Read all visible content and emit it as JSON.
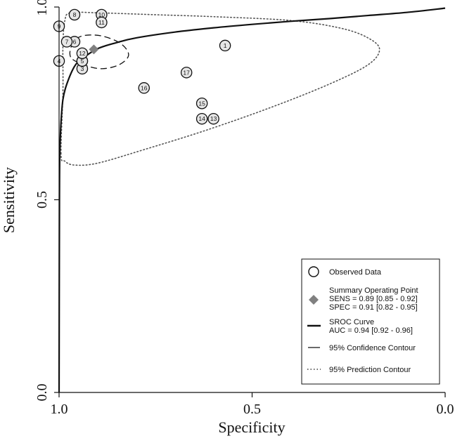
{
  "chart_data": {
    "type": "scatter",
    "title": "",
    "xlabel": "Specificity",
    "ylabel": "Sensitivity",
    "x_reversed": true,
    "xlim": [
      1.0,
      0.0
    ],
    "ylim": [
      0.0,
      1.0
    ],
    "x_ticks": [
      "1.0",
      "0.5",
      "0.0"
    ],
    "y_ticks": [
      "0.0",
      "0.5",
      "1.0"
    ],
    "grid": false,
    "legend_position": "bottom-right",
    "observed_points": [
      {
        "label": "1",
        "specificity": 0.57,
        "sensitivity": 0.9
      },
      {
        "label": "2",
        "specificity": 0.94,
        "sensitivity": 0.86
      },
      {
        "label": "3",
        "specificity": 0.94,
        "sensitivity": 0.84
      },
      {
        "label": "4",
        "specificity": 1.0,
        "sensitivity": 0.86
      },
      {
        "label": "5",
        "specificity": 0.94,
        "sensitivity": 0.86
      },
      {
        "label": "6",
        "specificity": 0.96,
        "sensitivity": 0.91
      },
      {
        "label": "7",
        "specificity": 0.98,
        "sensitivity": 0.91
      },
      {
        "label": "8",
        "specificity": 0.96,
        "sensitivity": 0.98
      },
      {
        "label": "9",
        "specificity": 1.0,
        "sensitivity": 0.95
      },
      {
        "label": "10",
        "specificity": 0.89,
        "sensitivity": 0.98
      },
      {
        "label": "11",
        "specificity": 0.89,
        "sensitivity": 0.96
      },
      {
        "label": "12",
        "specificity": 0.94,
        "sensitivity": 0.88
      },
      {
        "label": "13",
        "specificity": 0.6,
        "sensitivity": 0.71
      },
      {
        "label": "14",
        "specificity": 0.63,
        "sensitivity": 0.71
      },
      {
        "label": "15",
        "specificity": 0.63,
        "sensitivity": 0.75
      },
      {
        "label": "16",
        "specificity": 0.78,
        "sensitivity": 0.79
      },
      {
        "label": "17",
        "specificity": 0.67,
        "sensitivity": 0.83
      }
    ],
    "summary_point": {
      "specificity": 0.91,
      "sensitivity": 0.89
    },
    "sroc_curve": [
      {
        "specificity": 1.0,
        "sensitivity": 0.0
      },
      {
        "specificity": 0.999,
        "sensitivity": 0.5
      },
      {
        "specificity": 0.998,
        "sensitivity": 0.62
      },
      {
        "specificity": 0.995,
        "sensitivity": 0.7
      },
      {
        "specificity": 0.99,
        "sensitivity": 0.76
      },
      {
        "specificity": 0.98,
        "sensitivity": 0.8
      },
      {
        "specificity": 0.96,
        "sensitivity": 0.846
      },
      {
        "specificity": 0.94,
        "sensitivity": 0.866
      },
      {
        "specificity": 0.9,
        "sensitivity": 0.892
      },
      {
        "specificity": 0.85,
        "sensitivity": 0.908
      },
      {
        "specificity": 0.8,
        "sensitivity": 0.92
      },
      {
        "specificity": 0.7,
        "sensitivity": 0.935
      },
      {
        "specificity": 0.6,
        "sensitivity": 0.946
      },
      {
        "specificity": 0.5,
        "sensitivity": 0.955
      },
      {
        "specificity": 0.4,
        "sensitivity": 0.963
      },
      {
        "specificity": 0.3,
        "sensitivity": 0.97
      },
      {
        "specificity": 0.2,
        "sensitivity": 0.978
      },
      {
        "specificity": 0.1,
        "sensitivity": 0.986
      },
      {
        "specificity": 0.0,
        "sensitivity": 0.997
      }
    ],
    "confidence_contour": [
      {
        "specificity": 0.97,
        "sensitivity": 0.87
      },
      {
        "specificity": 0.965,
        "sensitivity": 0.905
      },
      {
        "specificity": 0.94,
        "sensitivity": 0.925
      },
      {
        "specificity": 0.89,
        "sensitivity": 0.925
      },
      {
        "specificity": 0.84,
        "sensitivity": 0.905
      },
      {
        "specificity": 0.82,
        "sensitivity": 0.875
      },
      {
        "specificity": 0.845,
        "sensitivity": 0.85
      },
      {
        "specificity": 0.89,
        "sensitivity": 0.84
      },
      {
        "specificity": 0.935,
        "sensitivity": 0.85
      }
    ],
    "prediction_contour": [
      {
        "specificity": 0.995,
        "sensitivity": 0.62
      },
      {
        "specificity": 0.99,
        "sensitivity": 0.78
      },
      {
        "specificity": 0.99,
        "sensitivity": 0.9
      },
      {
        "specificity": 0.985,
        "sensitivity": 0.965
      },
      {
        "specificity": 0.97,
        "sensitivity": 0.985
      },
      {
        "specificity": 0.9,
        "sensitivity": 0.985
      },
      {
        "specificity": 0.75,
        "sensitivity": 0.98
      },
      {
        "specificity": 0.6,
        "sensitivity": 0.975
      },
      {
        "specificity": 0.4,
        "sensitivity": 0.965
      },
      {
        "specificity": 0.27,
        "sensitivity": 0.945
      },
      {
        "specificity": 0.2,
        "sensitivity": 0.92
      },
      {
        "specificity": 0.17,
        "sensitivity": 0.89
      },
      {
        "specificity": 0.2,
        "sensitivity": 0.85
      },
      {
        "specificity": 0.3,
        "sensitivity": 0.8
      },
      {
        "specificity": 0.45,
        "sensitivity": 0.74
      },
      {
        "specificity": 0.62,
        "sensitivity": 0.68
      },
      {
        "specificity": 0.78,
        "sensitivity": 0.63
      },
      {
        "specificity": 0.9,
        "sensitivity": 0.595
      },
      {
        "specificity": 0.96,
        "sensitivity": 0.59
      },
      {
        "specificity": 0.985,
        "sensitivity": 0.6
      }
    ],
    "colors": {
      "observed_fill": "#e6e6e6",
      "summary_point": "#808080",
      "lines": "#111111"
    },
    "legend": {
      "observed": "Observed Data",
      "summary_title": "Summary Operating Point",
      "summary_sens": "SENS = 0.89 [0.85 - 0.92]",
      "summary_spec": "SPEC = 0.91 [0.82 - 0.95]",
      "sroc_title": "SROC Curve",
      "sroc_auc": "AUC = 0.94 [0.92 - 0.96]",
      "confidence": "95% Confidence Contour",
      "prediction": "95% Prediction Contour"
    }
  }
}
